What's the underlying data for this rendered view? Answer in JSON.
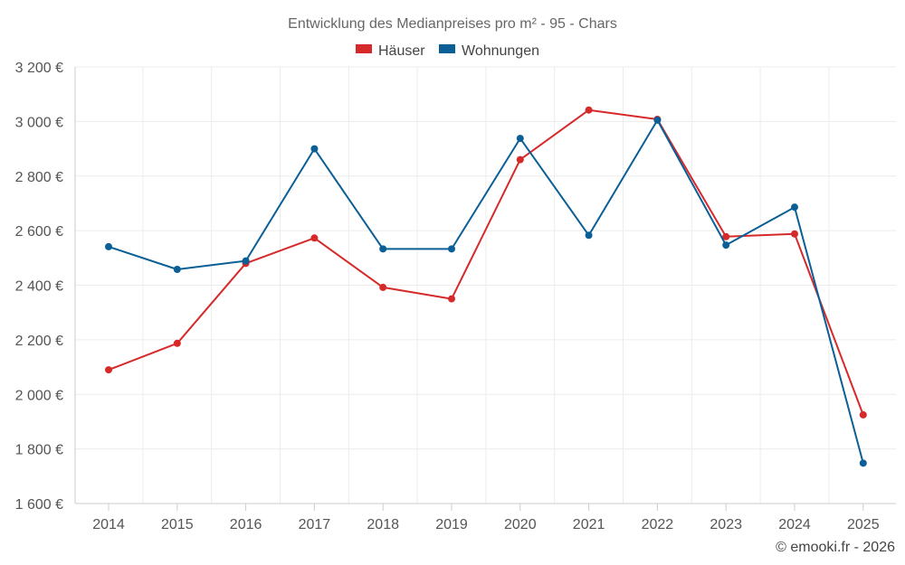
{
  "chart_data": {
    "type": "line",
    "title": "Entwicklung des Medianpreises pro m² - 95 - Chars",
    "credit": "© emooki.fr - 2026",
    "categories": [
      "2014",
      "2015",
      "2016",
      "2017",
      "2018",
      "2019",
      "2020",
      "2021",
      "2022",
      "2023",
      "2024",
      "2025"
    ],
    "ylim": [
      1600,
      3200
    ],
    "yticks": [
      1600,
      1800,
      2000,
      2200,
      2400,
      2600,
      2800,
      3000,
      3200
    ],
    "ytick_labels": [
      "1 600 €",
      "1 800 €",
      "2 000 €",
      "2 200 €",
      "2 400 €",
      "2 600 €",
      "2 800 €",
      "3 000 €",
      "3 200 €"
    ],
    "legend_position": "top-center",
    "grid": true,
    "series": [
      {
        "name": "Häuser",
        "color": "#d62a2a",
        "values": [
          2090,
          2187,
          2480,
          2573,
          2392,
          2350,
          2860,
          3042,
          3008,
          2578,
          2588,
          1925
        ]
      },
      {
        "name": "Wohnungen",
        "color": "#0b5f96",
        "values": [
          2541,
          2458,
          2489,
          2900,
          2533,
          2533,
          2938,
          2583,
          3005,
          2547,
          2686,
          1748
        ]
      }
    ]
  }
}
